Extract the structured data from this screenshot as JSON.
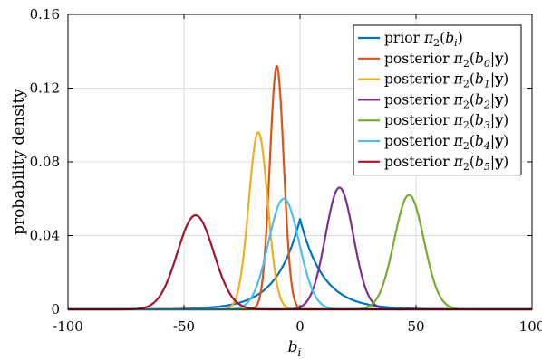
{
  "chart_data": {
    "type": "line",
    "xlabel": "b_i",
    "ylabel": "probability density",
    "xlim": [
      -100,
      100
    ],
    "ylim": [
      0,
      0.16
    ],
    "xticks": [
      -100,
      -50,
      0,
      50,
      100
    ],
    "yticks": [
      0,
      0.04,
      0.08,
      0.12,
      0.16
    ],
    "xtick_labels": [
      "-100",
      "-50",
      "0",
      "50",
      "100"
    ],
    "ytick_labels": [
      "0",
      "0.04",
      "0.08",
      "0.12",
      "0.16"
    ],
    "grid": true,
    "legend_position": "top-right",
    "series": [
      {
        "name": "prior π2(bi)",
        "legend_prefix": "prior",
        "legend_arg": "b",
        "legend_sub": "i",
        "legend_cond": "",
        "color": "#0072BD",
        "shape": "laplace",
        "center": 0,
        "scale": 10,
        "peak": 0.049
      },
      {
        "name": "posterior π2(b0|y)",
        "legend_prefix": "posterior",
        "legend_arg": "b",
        "legend_sub": "0",
        "legend_cond": "y",
        "color": "#D95319",
        "shape": "gaussian",
        "center": -10,
        "scale": 3.0,
        "peak": 0.132
      },
      {
        "name": "posterior π2(b1|y)",
        "legend_prefix": "posterior",
        "legend_arg": "b",
        "legend_sub": "1",
        "legend_cond": "y",
        "color": "#EDB120",
        "shape": "gaussian",
        "center": -18,
        "scale": 4.1,
        "peak": 0.096
      },
      {
        "name": "posterior π2(b2|y)",
        "legend_prefix": "posterior",
        "legend_arg": "b",
        "legend_sub": "2",
        "legend_cond": "y",
        "color": "#7E2F8E",
        "shape": "gaussian",
        "center": 17,
        "scale": 6.0,
        "peak": 0.066
      },
      {
        "name": "posterior π2(b3|y)",
        "legend_prefix": "posterior",
        "legend_arg": "b",
        "legend_sub": "3",
        "legend_cond": "y",
        "color": "#77AC30",
        "shape": "gaussian",
        "center": 47,
        "scale": 6.4,
        "peak": 0.062
      },
      {
        "name": "posterior π2(b4|y)",
        "legend_prefix": "posterior",
        "legend_arg": "b",
        "legend_sub": "4",
        "legend_cond": "y",
        "color": "#4DBEEE",
        "shape": "gaussian",
        "center": -7,
        "scale": 6.6,
        "peak": 0.06
      },
      {
        "name": "posterior π2(b5|y)",
        "legend_prefix": "posterior",
        "legend_arg": "b",
        "legend_sub": "5",
        "legend_cond": "y",
        "color": "#A2142F",
        "shape": "gaussian",
        "center": -45,
        "scale": 7.8,
        "peak": 0.051
      }
    ]
  }
}
